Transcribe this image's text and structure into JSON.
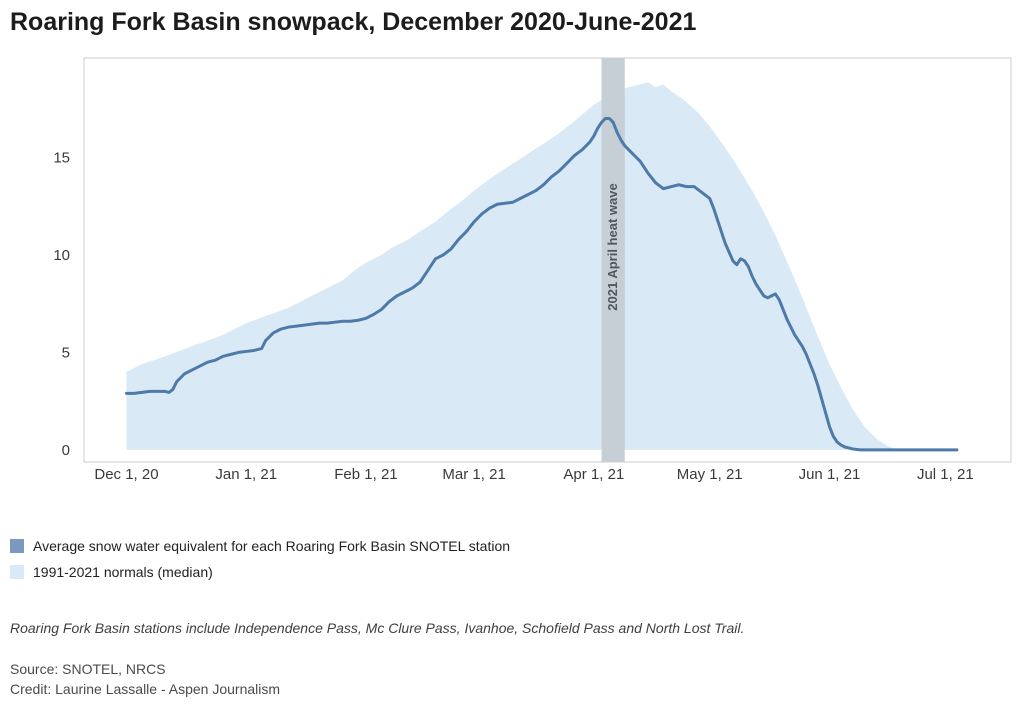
{
  "page": {
    "title": "Roaring Fork Basin snowpack, December 2020-June-2021",
    "note": "Roaring Fork Basin stations include Independence Pass, Mc Clure Pass, Ivanhoe, Schofield Pass and North Lost Trail.",
    "source": "Source: SNOTEL, NRCS",
    "credit": "Credit: Laurine Lassalle - Aspen Journalism"
  },
  "legend": [
    {
      "label": "Average snow water equivalent for each Roaring Fork Basin SNOTEL station",
      "color": "#7b99bf"
    },
    {
      "label": "1991-2021 normals (median)",
      "color": "#d9e9f6"
    }
  ],
  "chart_data": {
    "type": "line",
    "title": "Roaring Fork Basin snowpack, December 2020-June-2021",
    "x_unit": "days since Dec 1, 2020",
    "xlim_days": [
      -11,
      229
    ],
    "ylim": [
      -0.62,
      20.1
    ],
    "grid": false,
    "axis_color": "#cccccc",
    "tick_label_color": "#3a3a3a",
    "y_ticks": [
      0,
      5,
      10,
      15
    ],
    "x_ticks": [
      {
        "day": 0,
        "label": "Dec 1, 20"
      },
      {
        "day": 31,
        "label": "Jan 1, 21"
      },
      {
        "day": 62,
        "label": "Feb 1, 21"
      },
      {
        "day": 90,
        "label": "Mar 1, 21"
      },
      {
        "day": 121,
        "label": "Apr 1, 21"
      },
      {
        "day": 151,
        "label": "May 1, 21"
      },
      {
        "day": 182,
        "label": "Jun 1, 21"
      },
      {
        "day": 212,
        "label": "Jul 1, 21"
      }
    ],
    "annotation": {
      "label": "2021 April heat wave",
      "start_day": 123,
      "end_day": 129,
      "band_color": "#c6ced6",
      "text_color": "#50575d"
    },
    "series": [
      {
        "name": "Average snow water equivalent for each Roaring Fork Basin SNOTEL station",
        "type": "line",
        "color": "#4d7aa9",
        "points": [
          [
            0,
            2.9
          ],
          [
            2,
            2.9
          ],
          [
            4,
            2.95
          ],
          [
            6,
            3.0
          ],
          [
            8,
            3.0
          ],
          [
            10,
            3.0
          ],
          [
            11,
            2.95
          ],
          [
            12,
            3.1
          ],
          [
            13,
            3.5
          ],
          [
            15,
            3.9
          ],
          [
            17,
            4.1
          ],
          [
            19,
            4.3
          ],
          [
            21,
            4.5
          ],
          [
            23,
            4.6
          ],
          [
            25,
            4.8
          ],
          [
            27,
            4.9
          ],
          [
            29,
            5.0
          ],
          [
            31,
            5.05
          ],
          [
            33,
            5.1
          ],
          [
            35,
            5.2
          ],
          [
            36,
            5.6
          ],
          [
            38,
            6.0
          ],
          [
            40,
            6.2
          ],
          [
            42,
            6.3
          ],
          [
            44,
            6.35
          ],
          [
            46,
            6.4
          ],
          [
            48,
            6.45
          ],
          [
            50,
            6.5
          ],
          [
            52,
            6.5
          ],
          [
            54,
            6.55
          ],
          [
            56,
            6.6
          ],
          [
            58,
            6.6
          ],
          [
            60,
            6.65
          ],
          [
            62,
            6.75
          ],
          [
            64,
            6.95
          ],
          [
            66,
            7.2
          ],
          [
            68,
            7.6
          ],
          [
            70,
            7.9
          ],
          [
            72,
            8.1
          ],
          [
            74,
            8.3
          ],
          [
            76,
            8.6
          ],
          [
            78,
            9.2
          ],
          [
            80,
            9.8
          ],
          [
            82,
            10.0
          ],
          [
            84,
            10.3
          ],
          [
            86,
            10.8
          ],
          [
            88,
            11.2
          ],
          [
            90,
            11.7
          ],
          [
            92,
            12.1
          ],
          [
            94,
            12.4
          ],
          [
            96,
            12.6
          ],
          [
            98,
            12.65
          ],
          [
            100,
            12.7
          ],
          [
            102,
            12.9
          ],
          [
            104,
            13.1
          ],
          [
            106,
            13.3
          ],
          [
            108,
            13.6
          ],
          [
            110,
            14.0
          ],
          [
            112,
            14.3
          ],
          [
            114,
            14.7
          ],
          [
            116,
            15.1
          ],
          [
            118,
            15.4
          ],
          [
            120,
            15.8
          ],
          [
            121,
            16.1
          ],
          [
            122,
            16.5
          ],
          [
            123,
            16.8
          ],
          [
            124,
            17.0
          ],
          [
            125,
            17.0
          ],
          [
            126,
            16.8
          ],
          [
            127,
            16.3
          ],
          [
            128,
            15.9
          ],
          [
            129,
            15.6
          ],
          [
            130,
            15.4
          ],
          [
            131,
            15.2
          ],
          [
            133,
            14.8
          ],
          [
            135,
            14.2
          ],
          [
            137,
            13.7
          ],
          [
            139,
            13.4
          ],
          [
            141,
            13.5
          ],
          [
            143,
            13.6
          ],
          [
            145,
            13.5
          ],
          [
            147,
            13.5
          ],
          [
            149,
            13.2
          ],
          [
            151,
            12.9
          ],
          [
            152,
            12.4
          ],
          [
            153,
            11.8
          ],
          [
            155,
            10.6
          ],
          [
            157,
            9.7
          ],
          [
            158,
            9.5
          ],
          [
            159,
            9.8
          ],
          [
            160,
            9.7
          ],
          [
            161,
            9.4
          ],
          [
            162,
            8.9
          ],
          [
            163,
            8.5
          ],
          [
            164,
            8.2
          ],
          [
            165,
            7.9
          ],
          [
            166,
            7.8
          ],
          [
            167,
            7.9
          ],
          [
            168,
            8.0
          ],
          [
            169,
            7.7
          ],
          [
            170,
            7.2
          ],
          [
            171,
            6.7
          ],
          [
            172,
            6.3
          ],
          [
            173,
            5.9
          ],
          [
            174,
            5.6
          ],
          [
            175,
            5.3
          ],
          [
            176,
            4.9
          ],
          [
            177,
            4.4
          ],
          [
            178,
            3.9
          ],
          [
            179,
            3.3
          ],
          [
            180,
            2.6
          ],
          [
            181,
            1.9
          ],
          [
            182,
            1.2
          ],
          [
            183,
            0.7
          ],
          [
            184,
            0.4
          ],
          [
            185,
            0.25
          ],
          [
            186,
            0.15
          ],
          [
            187,
            0.1
          ],
          [
            188,
            0.05
          ],
          [
            190,
            0
          ],
          [
            195,
            0
          ],
          [
            200,
            0
          ],
          [
            205,
            0
          ],
          [
            210,
            0
          ],
          [
            215,
            0
          ]
        ]
      },
      {
        "name": "1991-2021 normals (median)",
        "type": "area",
        "color": "#d9e9f6",
        "baseline": 0,
        "points": [
          [
            0,
            4.0
          ],
          [
            4,
            4.4
          ],
          [
            7,
            4.6
          ],
          [
            10,
            4.8
          ],
          [
            14,
            5.1
          ],
          [
            18,
            5.4
          ],
          [
            21,
            5.6
          ],
          [
            25,
            5.9
          ],
          [
            28,
            6.2
          ],
          [
            31,
            6.5
          ],
          [
            35,
            6.8
          ],
          [
            38,
            7.0
          ],
          [
            42,
            7.3
          ],
          [
            45,
            7.6
          ],
          [
            49,
            8.0
          ],
          [
            52,
            8.3
          ],
          [
            56,
            8.7
          ],
          [
            59,
            9.2
          ],
          [
            62,
            9.6
          ],
          [
            66,
            10.0
          ],
          [
            69,
            10.4
          ],
          [
            73,
            10.8
          ],
          [
            76,
            11.2
          ],
          [
            80,
            11.7
          ],
          [
            83,
            12.2
          ],
          [
            87,
            12.8
          ],
          [
            90,
            13.3
          ],
          [
            94,
            13.9
          ],
          [
            97,
            14.3
          ],
          [
            101,
            14.8
          ],
          [
            104,
            15.2
          ],
          [
            108,
            15.7
          ],
          [
            111,
            16.1
          ],
          [
            115,
            16.7
          ],
          [
            118,
            17.2
          ],
          [
            121,
            17.7
          ],
          [
            125,
            18.2
          ],
          [
            128,
            18.5
          ],
          [
            132,
            18.7
          ],
          [
            135,
            18.85
          ],
          [
            137,
            18.6
          ],
          [
            139,
            18.75
          ],
          [
            141,
            18.4
          ],
          [
            144,
            18.0
          ],
          [
            148,
            17.3
          ],
          [
            151,
            16.6
          ],
          [
            155,
            15.5
          ],
          [
            158,
            14.6
          ],
          [
            162,
            13.3
          ],
          [
            165,
            12.2
          ],
          [
            168,
            11.0
          ],
          [
            172,
            9.2
          ],
          [
            175,
            7.8
          ],
          [
            178,
            6.3
          ],
          [
            182,
            4.4
          ],
          [
            185,
            3.2
          ],
          [
            188,
            2.1
          ],
          [
            191,
            1.2
          ],
          [
            194,
            0.6
          ],
          [
            197,
            0.2
          ],
          [
            200,
            0
          ],
          [
            206,
            0
          ],
          [
            212,
            0
          ]
        ]
      }
    ]
  }
}
